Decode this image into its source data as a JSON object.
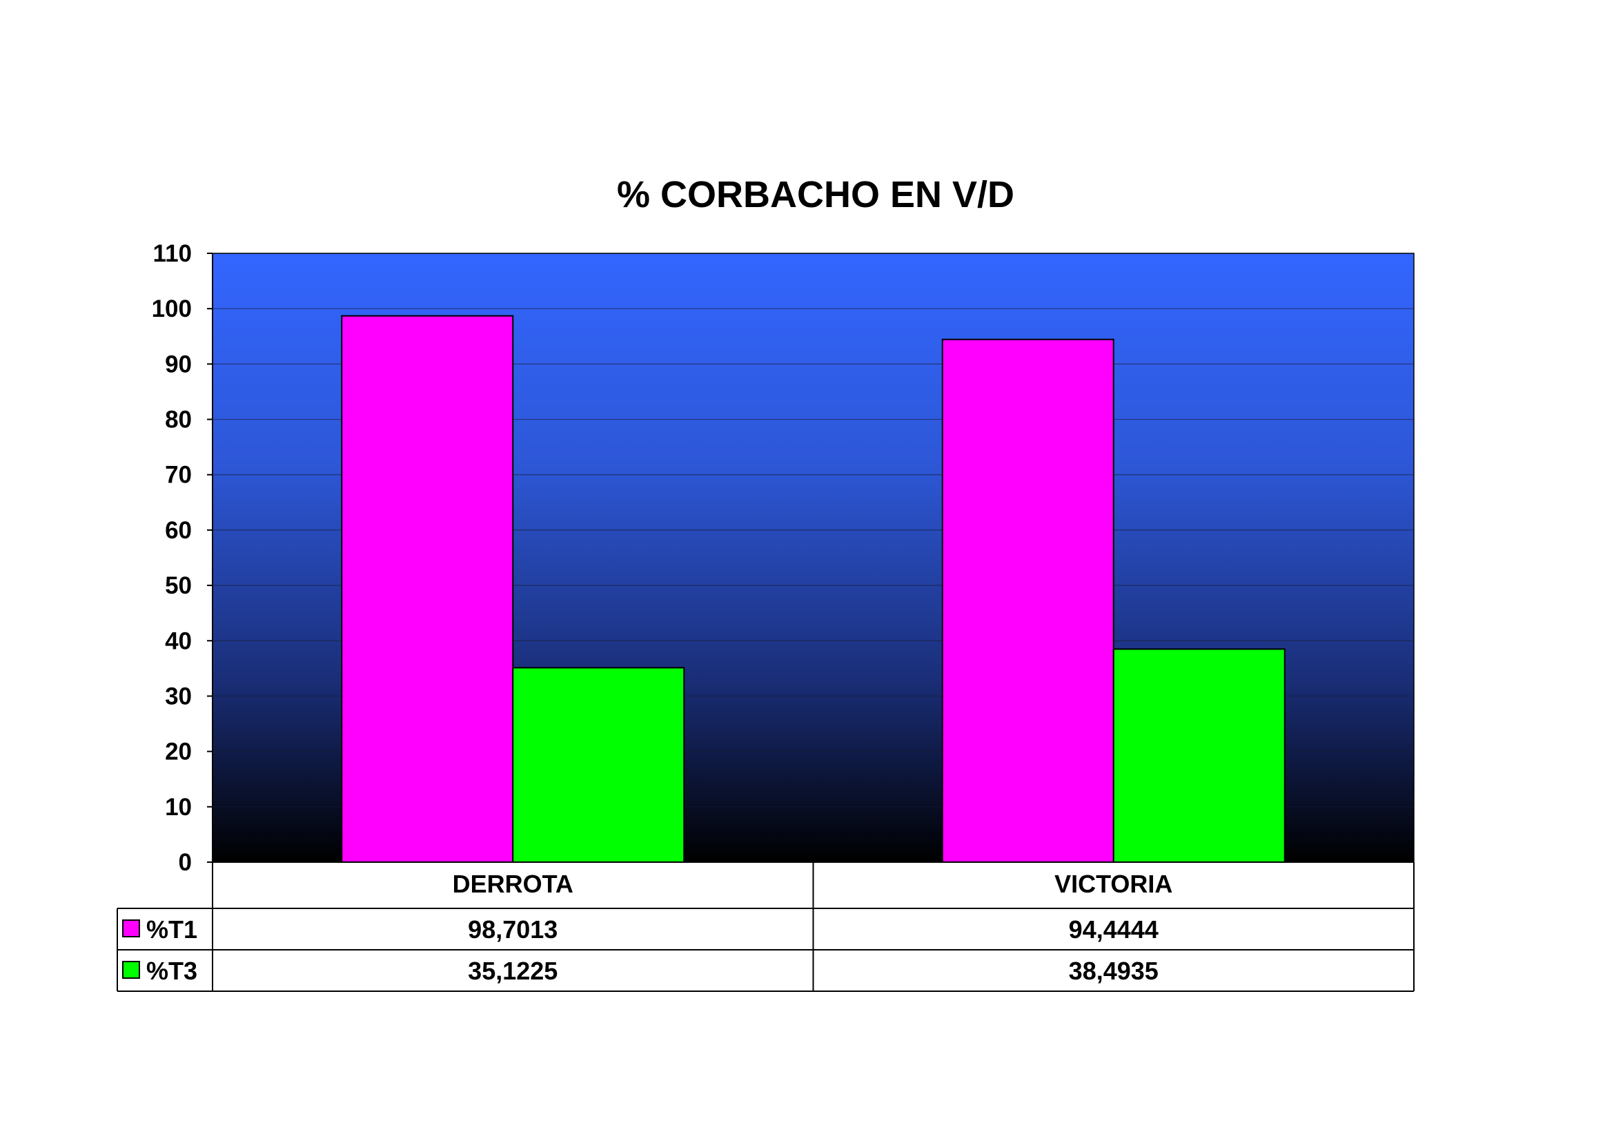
{
  "chart_data": {
    "type": "bar",
    "title": "% CORBACHO EN V/D",
    "categories": [
      "DERROTA",
      "VICTORIA"
    ],
    "series": [
      {
        "name": "%T1",
        "values": [
          98.7013,
          94.4444
        ],
        "labels": [
          "98,7013",
          "94,4444"
        ],
        "color": "#ff00ff"
      },
      {
        "name": "%T3",
        "values": [
          35.1225,
          38.4935
        ],
        "labels": [
          "35,1225",
          "38,4935"
        ],
        "color": "#00ff00"
      }
    ],
    "ylim": [
      0,
      110
    ],
    "yticks": [
      0,
      10,
      20,
      30,
      40,
      50,
      60,
      70,
      80,
      90,
      100,
      110
    ],
    "grid": true,
    "legend": "data-table-left",
    "background_gradient": [
      "#3366ff",
      "#000000"
    ],
    "xlabel": "",
    "ylabel": ""
  }
}
